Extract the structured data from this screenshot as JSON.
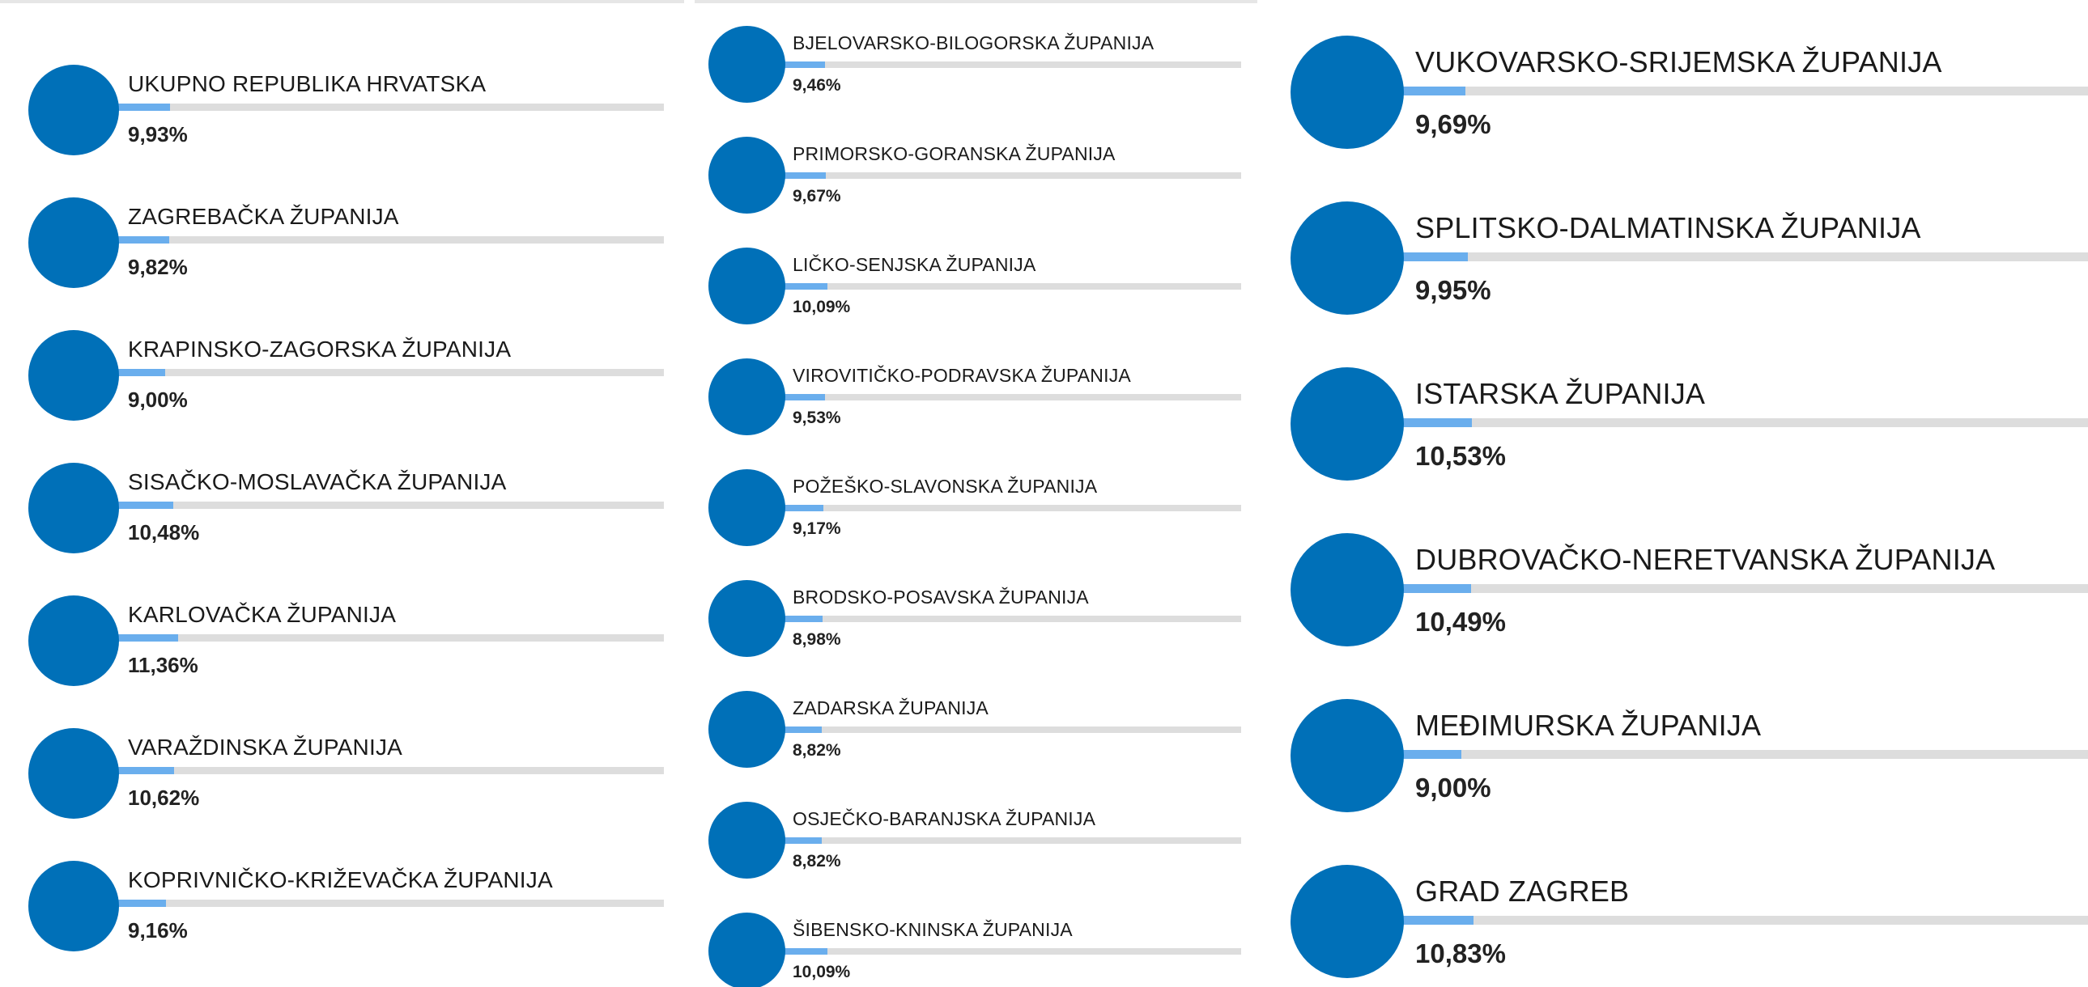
{
  "panels": [
    {
      "rows": [
        {
          "name": "UKUPNO REPUBLIKA HRVATSKA",
          "percent": "9,93%",
          "value": 9.93
        },
        {
          "name": "ZAGREBAČKA ŽUPANIJA",
          "percent": "9,82%",
          "value": 9.82
        },
        {
          "name": "KRAPINSKO-ZAGORSKA ŽUPANIJA",
          "percent": "9,00%",
          "value": 9.0
        },
        {
          "name": "SISAČKO-MOSLAVAČKA ŽUPANIJA",
          "percent": "10,48%",
          "value": 10.48
        },
        {
          "name": "KARLOVAČKA ŽUPANIJA",
          "percent": "11,36%",
          "value": 11.36
        },
        {
          "name": "VARAŽDINSKA ŽUPANIJA",
          "percent": "10,62%",
          "value": 10.62
        },
        {
          "name": "KOPRIVNIČKO-KRIŽEVAČKA ŽUPANIJA",
          "percent": "9,16%",
          "value": 9.16
        }
      ]
    },
    {
      "rows": [
        {
          "name": "BJELOVARSKO-BILOGORSKA ŽUPANIJA",
          "percent": "9,46%",
          "value": 9.46
        },
        {
          "name": "PRIMORSKO-GORANSKA ŽUPANIJA",
          "percent": "9,67%",
          "value": 9.67
        },
        {
          "name": "LIČKO-SENJSKA ŽUPANIJA",
          "percent": "10,09%",
          "value": 10.09
        },
        {
          "name": "VIROVITIČKO-PODRAVSKA ŽUPANIJA",
          "percent": "9,53%",
          "value": 9.53
        },
        {
          "name": "POŽEŠKO-SLAVONSKA ŽUPANIJA",
          "percent": "9,17%",
          "value": 9.17
        },
        {
          "name": "BRODSKO-POSAVSKA ŽUPANIJA",
          "percent": "8,98%",
          "value": 8.98
        },
        {
          "name": "ZADARSKA ŽUPANIJA",
          "percent": "8,82%",
          "value": 8.82
        },
        {
          "name": "OSJEČKO-BARANJSKA ŽUPANIJA",
          "percent": "8,82%",
          "value": 8.82
        },
        {
          "name": "ŠIBENSKO-KNINSKA ŽUPANIJA",
          "percent": "10,09%",
          "value": 10.09
        }
      ]
    },
    {
      "rows": [
        {
          "name": "VUKOVARSKO-SRIJEMSKA ŽUPANIJA",
          "percent": "9,69%",
          "value": 9.69
        },
        {
          "name": "SPLITSKO-DALMATINSKA ŽUPANIJA",
          "percent": "9,95%",
          "value": 9.95
        },
        {
          "name": "ISTARSKA ŽUPANIJA",
          "percent": "10,53%",
          "value": 10.53
        },
        {
          "name": "DUBROVAČKO-NERETVANSKA ŽUPANIJA",
          "percent": "10,49%",
          "value": 10.49
        },
        {
          "name": "MEĐIMURSKA ŽUPANIJA",
          "percent": "9,00%",
          "value": 9.0
        },
        {
          "name": "GRAD ZAGREB",
          "percent": "10,83%",
          "value": 10.83
        }
      ]
    }
  ],
  "colors": {
    "circle": "#0070b8",
    "bar_fill": "#6aaeed",
    "bar_track": "#dddddd"
  }
}
